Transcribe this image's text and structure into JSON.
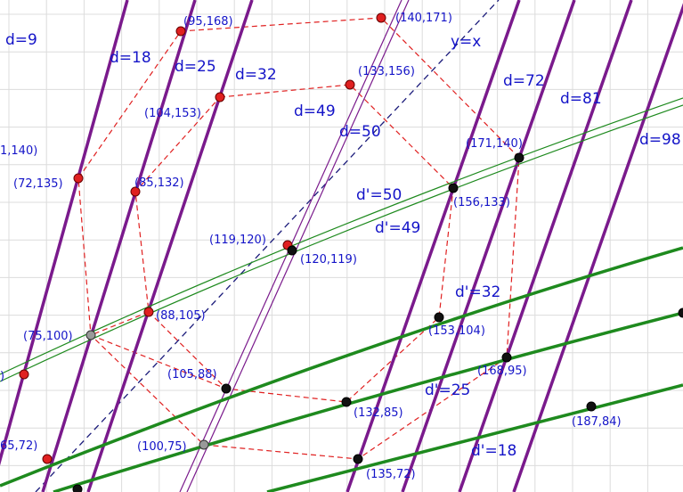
{
  "curve_labels": [
    "d=9",
    "d=18",
    "d=25",
    "d=32",
    "d=49",
    "d=50",
    "y=x",
    "d=72",
    "d=81",
    "d=98",
    "d'=50",
    "d'=49",
    "d'=32",
    "d'=25",
    "d'=18"
  ],
  "point_labels": [
    "(95,168)",
    "(140,171)",
    "(133,156)",
    "(104,153)",
    "1,140)",
    "(72,135)",
    "(85,132)",
    "(171,140)",
    "(156,133)",
    "(119,120)",
    "(120,119)",
    "(88,105)",
    "(75,100)",
    "(153,104)",
    "(168,95)",
    "(105,88)",
    "(132,85)",
    "(187,84)",
    "(100,75)",
    "65,72)",
    "(135,72)",
    ")"
  ]
}
